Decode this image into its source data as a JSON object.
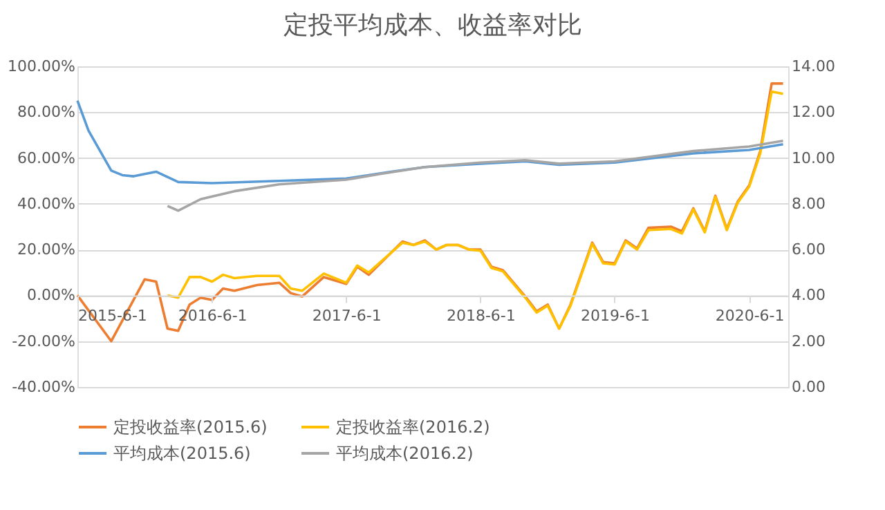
{
  "chart_data": {
    "type": "line",
    "title": "定投平均成本、收益率对比",
    "xlim": [
      "2015-06-01",
      "2020-09-15"
    ],
    "xticks": [
      {
        "value": "2015-06-01",
        "label": "2015-6-1"
      },
      {
        "value": "2016-06-01",
        "label": "2016-6-1"
      },
      {
        "value": "2017-06-01",
        "label": "2017-6-1"
      },
      {
        "value": "2018-06-01",
        "label": "2018-6-1"
      },
      {
        "value": "2019-06-01",
        "label": "2019-6-1"
      },
      {
        "value": "2020-06-01",
        "label": "2020-6-1"
      }
    ],
    "ylim": [
      -40,
      100
    ],
    "yticks": [
      {
        "value": -40,
        "label": "-40.00%"
      },
      {
        "value": -20,
        "label": "-20.00%"
      },
      {
        "value": 0,
        "label": "0.00%"
      },
      {
        "value": 20,
        "label": "20.00%"
      },
      {
        "value": 40,
        "label": "40.00%"
      },
      {
        "value": 60,
        "label": "60.00%"
      },
      {
        "value": 80,
        "label": "80.00%"
      },
      {
        "value": 100,
        "label": "100.00%"
      }
    ],
    "y2lim": [
      0,
      14
    ],
    "y2ticks": [
      {
        "value": 0,
        "label": "0.00"
      },
      {
        "value": 2,
        "label": "2.00"
      },
      {
        "value": 4,
        "label": "4.00"
      },
      {
        "value": 6,
        "label": "6.00"
      },
      {
        "value": 8,
        "label": "8.00"
      },
      {
        "value": 10,
        "label": "10.00"
      },
      {
        "value": 12,
        "label": "12.00"
      },
      {
        "value": 14,
        "label": "14.00"
      }
    ],
    "grid": "y",
    "legend": "bottom",
    "marker": "none",
    "line_style": "solid",
    "series": [
      {
        "name": "定投收益率(2015.6)",
        "color": "#ed7d31",
        "x": [
          "2015-06",
          "2015-09",
          "2015-12",
          "2016-01",
          "2016-02",
          "2016-03",
          "2016-04",
          "2016-05",
          "2016-06",
          "2016-07",
          "2016-08",
          "2016-10",
          "2016-12",
          "2017-01",
          "2017-02",
          "2017-04",
          "2017-06",
          "2017-07",
          "2017-08",
          "2017-11",
          "2017-12",
          "2018-01",
          "2018-02",
          "2018-03",
          "2018-04",
          "2018-05",
          "2018-06",
          "2018-07",
          "2018-08",
          "2018-10",
          "2018-11",
          "2018-12",
          "2019-01",
          "2019-02",
          "2019-04",
          "2019-05",
          "2019-06",
          "2019-07",
          "2019-08",
          "2019-09",
          "2019-11",
          "2019-12",
          "2020-01",
          "2020-02",
          "2020-03",
          "2020-04",
          "2020-05",
          "2020-06",
          "2020-07",
          "2020-08",
          "2020-09"
        ],
        "values": [
          0,
          -20,
          7,
          6,
          -14.5,
          -15.5,
          -4,
          -1,
          -2,
          3,
          2,
          4.5,
          5.5,
          1,
          -0.5,
          8,
          5,
          12.5,
          9,
          23.5,
          22,
          24,
          20,
          22,
          22,
          20,
          20,
          12.5,
          11,
          -0.5,
          -7,
          -4,
          -14.5,
          -4,
          23,
          14.5,
          14,
          24,
          20.5,
          29.5,
          30,
          28,
          38,
          28,
          43.5,
          29,
          41,
          48,
          63,
          92.5,
          92.5
        ]
      },
      {
        "name": "定投收益率(2016.2)",
        "color": "#ffc000",
        "x": [
          "2016-02",
          "2016-03",
          "2016-04",
          "2016-05",
          "2016-06",
          "2016-07",
          "2016-08",
          "2016-10",
          "2016-12",
          "2017-01",
          "2017-02",
          "2017-04",
          "2017-06",
          "2017-07",
          "2017-08",
          "2017-11",
          "2017-12",
          "2018-01",
          "2018-02",
          "2018-03",
          "2018-04",
          "2018-05",
          "2018-06",
          "2018-07",
          "2018-08",
          "2018-10",
          "2018-11",
          "2018-12",
          "2019-01",
          "2019-02",
          "2019-04",
          "2019-05",
          "2019-06",
          "2019-07",
          "2019-08",
          "2019-09",
          "2019-11",
          "2019-12",
          "2020-01",
          "2020-02",
          "2020-03",
          "2020-04",
          "2020-05",
          "2020-06",
          "2020-07",
          "2020-08",
          "2020-09"
        ],
        "values": [
          0,
          -1,
          8,
          8,
          6,
          9,
          7.5,
          8.5,
          8.5,
          3,
          2,
          9.5,
          5.5,
          13,
          10,
          23,
          22,
          23.5,
          20,
          22,
          22,
          20,
          19.5,
          12,
          10.5,
          -1,
          -7.5,
          -4.5,
          -14.5,
          -4.5,
          22.5,
          14,
          13.5,
          23.5,
          20,
          28.5,
          29,
          27,
          37.5,
          27.5,
          43,
          28.5,
          40.5,
          47.5,
          62,
          89,
          88
        ]
      },
      {
        "name": "平均成本(2015.6)",
        "color": "#5b9bd5",
        "axis": "y2",
        "x": [
          "2015-06",
          "2015-07",
          "2015-09",
          "2015-10",
          "2015-11",
          "2015-12",
          "2016-01",
          "2016-03",
          "2016-06",
          "2016-12",
          "2017-06",
          "2017-10",
          "2018-01",
          "2018-06",
          "2018-10",
          "2019-01",
          "2019-06",
          "2020-01",
          "2020-06",
          "2020-09"
        ],
        "values": [
          12.5,
          11.2,
          9.45,
          9.25,
          9.2,
          9.3,
          9.4,
          8.95,
          8.9,
          9.0,
          9.1,
          9.4,
          9.6,
          9.75,
          9.85,
          9.7,
          9.8,
          10.2,
          10.35,
          10.6
        ]
      },
      {
        "name": "平均成本(2016.2)",
        "color": "#a5a5a5",
        "axis": "y2",
        "x": [
          "2016-02",
          "2016-03",
          "2016-05",
          "2016-08",
          "2016-12",
          "2017-06",
          "2017-09",
          "2018-01",
          "2018-06",
          "2018-10",
          "2019-01",
          "2019-06",
          "2020-01",
          "2020-06",
          "2020-09"
        ],
        "values": [
          7.9,
          7.7,
          8.2,
          8.55,
          8.85,
          9.05,
          9.3,
          9.6,
          9.8,
          9.9,
          9.75,
          9.85,
          10.3,
          10.5,
          10.75
        ]
      }
    ]
  }
}
